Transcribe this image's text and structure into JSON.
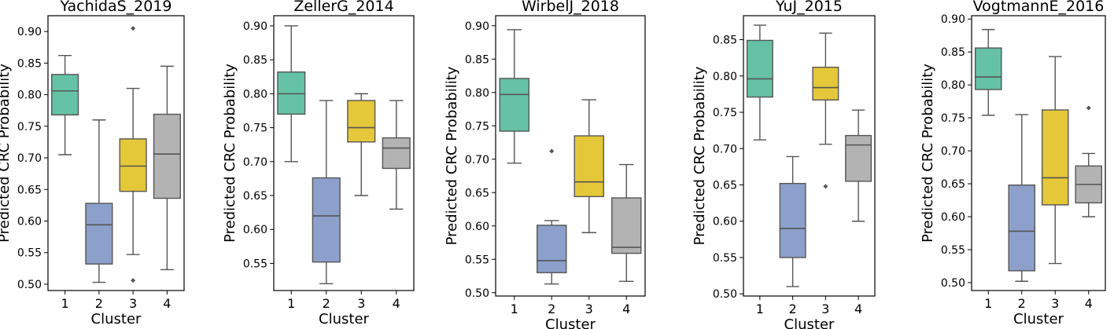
{
  "colors": {
    "cluster_1": "#66c2a5",
    "cluster_2": "#8da0cb",
    "cluster_3": "#e5c83a",
    "cluster_4": "#b3b3b3",
    "line": "#555555"
  },
  "chart_data": [
    {
      "type": "box",
      "title": "YachidaS_2019",
      "xlabel": "Cluster",
      "ylabel": "Predicted CRC Probability",
      "categories": [
        "1",
        "2",
        "3",
        "4"
      ],
      "yticks": [
        "0.50",
        "0.55",
        "0.60",
        "0.65",
        "0.70",
        "0.75",
        "0.80",
        "0.85",
        "0.90"
      ],
      "ylim": [
        0.49,
        0.925
      ],
      "boxes": [
        {
          "cluster": "1",
          "whisker_low": 0.705,
          "q1": 0.768,
          "median": 0.806,
          "q3": 0.832,
          "whisker_high": 0.862,
          "outliers": []
        },
        {
          "cluster": "2",
          "whisker_low": 0.503,
          "q1": 0.532,
          "median": 0.594,
          "q3": 0.628,
          "whisker_high": 0.76,
          "outliers": []
        },
        {
          "cluster": "3",
          "whisker_low": 0.547,
          "q1": 0.647,
          "median": 0.687,
          "q3": 0.73,
          "whisker_high": 0.81,
          "outliers": [
            0.905,
            0.506
          ]
        },
        {
          "cluster": "4",
          "whisker_low": 0.523,
          "q1": 0.636,
          "median": 0.706,
          "q3": 0.769,
          "whisker_high": 0.845,
          "outliers": []
        }
      ]
    },
    {
      "type": "box",
      "title": "ZellerG_2014",
      "xlabel": "Cluster",
      "ylabel": "Predicted CRC Probability",
      "categories": [
        "1",
        "2",
        "3",
        "4"
      ],
      "yticks": [
        "0.55",
        "0.60",
        "0.65",
        "0.70",
        "0.75",
        "0.80",
        "0.85",
        "0.90"
      ],
      "ylim": [
        0.51,
        0.915
      ],
      "boxes": [
        {
          "cluster": "1",
          "whisker_low": 0.7,
          "q1": 0.77,
          "median": 0.8,
          "q3": 0.832,
          "whisker_high": 0.9,
          "outliers": []
        },
        {
          "cluster": "2",
          "whisker_low": 0.52,
          "q1": 0.552,
          "median": 0.62,
          "q3": 0.676,
          "whisker_high": 0.79,
          "outliers": []
        },
        {
          "cluster": "3",
          "whisker_low": 0.65,
          "q1": 0.729,
          "median": 0.75,
          "q3": 0.79,
          "whisker_high": 0.8,
          "outliers": []
        },
        {
          "cluster": "4",
          "whisker_low": 0.63,
          "q1": 0.69,
          "median": 0.72,
          "q3": 0.735,
          "whisker_high": 0.79,
          "outliers": []
        }
      ]
    },
    {
      "type": "box",
      "title": "WirbelJ_2018",
      "xlabel": "Cluster",
      "ylabel": "Predicted CRC Probability",
      "categories": [
        "1",
        "2",
        "3",
        "4"
      ],
      "yticks": [
        "0.50",
        "0.55",
        "0.60",
        "0.65",
        "0.70",
        "0.75",
        "0.80",
        "0.85",
        "0.90"
      ],
      "ylim": [
        0.495,
        0.915
      ],
      "boxes": [
        {
          "cluster": "1",
          "whisker_low": 0.694,
          "q1": 0.742,
          "median": 0.797,
          "q3": 0.821,
          "whisker_high": 0.894,
          "outliers": []
        },
        {
          "cluster": "2",
          "whisker_low": 0.513,
          "q1": 0.53,
          "median": 0.548,
          "q3": 0.601,
          "whisker_high": 0.608,
          "outliers": [
            0.712
          ]
        },
        {
          "cluster": "3",
          "whisker_low": 0.59,
          "q1": 0.644,
          "median": 0.666,
          "q3": 0.735,
          "whisker_high": 0.789,
          "outliers": []
        },
        {
          "cluster": "4",
          "whisker_low": 0.517,
          "q1": 0.559,
          "median": 0.568,
          "q3": 0.642,
          "whisker_high": 0.692,
          "outliers": []
        }
      ]
    },
    {
      "type": "box",
      "title": "YuJ_2015",
      "xlabel": "Cluster",
      "ylabel": "Predicted CRC Probability",
      "categories": [
        "1",
        "2",
        "3",
        "4"
      ],
      "yticks": [
        "0.50",
        "0.55",
        "0.60",
        "0.65",
        "0.70",
        "0.75",
        "0.80",
        "0.85"
      ],
      "ylim": [
        0.497,
        0.883
      ],
      "boxes": [
        {
          "cluster": "1",
          "whisker_low": 0.712,
          "q1": 0.771,
          "median": 0.796,
          "q3": 0.849,
          "whisker_high": 0.87,
          "outliers": []
        },
        {
          "cluster": "2",
          "whisker_low": 0.51,
          "q1": 0.55,
          "median": 0.59,
          "q3": 0.652,
          "whisker_high": 0.689,
          "outliers": []
        },
        {
          "cluster": "3",
          "whisker_low": 0.706,
          "q1": 0.767,
          "median": 0.784,
          "q3": 0.812,
          "whisker_high": 0.859,
          "outliers": [
            0.648
          ]
        },
        {
          "cluster": "4",
          "whisker_low": 0.6,
          "q1": 0.655,
          "median": 0.705,
          "q3": 0.718,
          "whisker_high": 0.753,
          "outliers": []
        }
      ]
    },
    {
      "type": "box",
      "title": "VogtmannE_2016",
      "xlabel": "Cluster",
      "ylabel": "Predicted CRC Probability",
      "categories": [
        "1",
        "2",
        "3",
        "4"
      ],
      "yticks": [
        "0.50",
        "0.55",
        "0.60",
        "0.65",
        "0.70",
        "0.75",
        "0.80",
        "0.85",
        "0.90"
      ],
      "ylim": [
        0.488,
        0.905
      ],
      "boxes": [
        {
          "cluster": "1",
          "whisker_low": 0.754,
          "q1": 0.793,
          "median": 0.812,
          "q3": 0.856,
          "whisker_high": 0.884,
          "outliers": []
        },
        {
          "cluster": "2",
          "whisker_low": 0.502,
          "q1": 0.518,
          "median": 0.578,
          "q3": 0.648,
          "whisker_high": 0.755,
          "outliers": []
        },
        {
          "cluster": "3",
          "whisker_low": 0.529,
          "q1": 0.618,
          "median": 0.659,
          "q3": 0.762,
          "whisker_high": 0.843,
          "outliers": []
        },
        {
          "cluster": "4",
          "whisker_low": 0.6,
          "q1": 0.621,
          "median": 0.649,
          "q3": 0.677,
          "whisker_high": 0.696,
          "outliers": [
            0.765
          ]
        }
      ]
    }
  ]
}
